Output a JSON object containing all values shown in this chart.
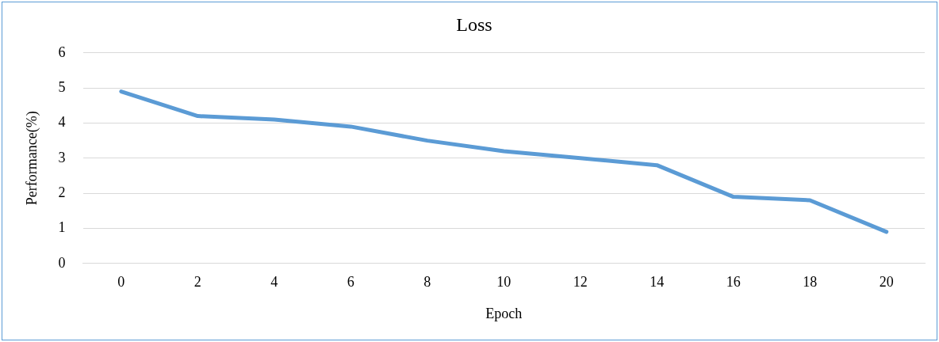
{
  "chart_data": {
    "type": "line",
    "title": "Loss",
    "xlabel": "Epoch",
    "ylabel": "Performance(%)",
    "categories": [
      "0",
      "2",
      "4",
      "6",
      "8",
      "10",
      "12",
      "14",
      "16",
      "18",
      "20"
    ],
    "series": [
      {
        "color": "#5b9bd5",
        "values": [
          4.9,
          4.2,
          4.1,
          3.9,
          3.5,
          3.2,
          3.0,
          2.8,
          1.9,
          1.8,
          0.9
        ]
      }
    ],
    "ylim": [
      0,
      6
    ],
    "yticks": [
      0,
      1,
      2,
      3,
      4,
      5,
      6
    ],
    "grid": "y",
    "legend": false,
    "marker": "none",
    "line_style": "solid"
  }
}
